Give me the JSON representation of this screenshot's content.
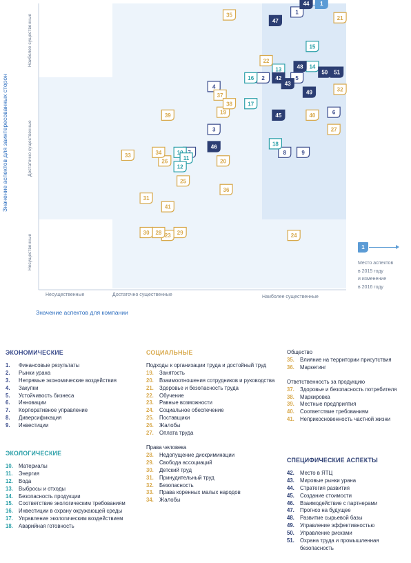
{
  "chart_data": {
    "type": "scatter",
    "xlabel": "Значение аспектов для компании",
    "ylabel": "Значение аспектов для заинтересованных сторон",
    "x_ticks": [
      "Несущественные",
      "Достаточно существенные",
      "Наиболее существенные"
    ],
    "y_ticks": [
      "Несущественные",
      "Достаточно существенные",
      "Наиболее существенные"
    ],
    "xlim": [
      0,
      10
    ],
    "ylim": [
      0,
      10
    ],
    "colors": {
      "economic": "#3b4c8c",
      "environmental": "#2a9fa8",
      "social": "#d8a94c",
      "specific": "#2c3e73",
      "legend": "#5b9bd5",
      "zone_mid": "#edf4fb",
      "zone_top": "#dce9f7"
    },
    "points": [
      {
        "label": "1",
        "group": "economic",
        "x": 8.4,
        "y": 9.7,
        "x_prev": 9.2,
        "y_prev": 10.0
      },
      {
        "label": "2",
        "group": "economic",
        "x": 7.3,
        "y": 7.4
      },
      {
        "label": "3",
        "group": "economic",
        "x": 5.7,
        "y": 5.6
      },
      {
        "label": "4",
        "group": "economic",
        "x": 5.7,
        "y": 7.1
      },
      {
        "label": "5",
        "group": "economic",
        "x": 8.4,
        "y": 7.4
      },
      {
        "label": "6",
        "group": "economic",
        "x": 9.6,
        "y": 6.2
      },
      {
        "label": "7",
        "group": "economic",
        "x": 4.9,
        "y": 4.8
      },
      {
        "label": "8",
        "group": "economic",
        "x": 8.0,
        "y": 4.8
      },
      {
        "label": "9",
        "group": "economic",
        "x": 8.6,
        "y": 4.8
      },
      {
        "label": "10",
        "group": "environmental",
        "x": 4.6,
        "y": 4.8
      },
      {
        "label": "11",
        "group": "environmental",
        "x": 4.8,
        "y": 4.6
      },
      {
        "label": "12",
        "group": "environmental",
        "x": 4.6,
        "y": 4.3
      },
      {
        "label": "13",
        "group": "environmental",
        "x": 7.8,
        "y": 7.7
      },
      {
        "label": "14",
        "group": "environmental",
        "x": 8.9,
        "y": 7.8
      },
      {
        "label": "15",
        "group": "environmental",
        "x": 8.9,
        "y": 8.5
      },
      {
        "label": "16",
        "group": "environmental",
        "x": 6.9,
        "y": 7.4
      },
      {
        "label": "17",
        "group": "environmental",
        "x": 6.9,
        "y": 6.5
      },
      {
        "label": "18",
        "group": "environmental",
        "x": 7.7,
        "y": 5.1
      },
      {
        "label": "19",
        "group": "social",
        "x": 6.0,
        "y": 6.2
      },
      {
        "label": "20",
        "group": "social",
        "x": 6.0,
        "y": 4.5
      },
      {
        "label": "21",
        "group": "social",
        "x": 9.8,
        "y": 9.5
      },
      {
        "label": "22",
        "group": "social",
        "x": 7.4,
        "y": 8.0
      },
      {
        "label": "23",
        "group": "social",
        "x": 4.2,
        "y": 1.9
      },
      {
        "label": "24",
        "group": "social",
        "x": 8.3,
        "y": 1.9
      },
      {
        "label": "25",
        "group": "social",
        "x": 4.7,
        "y": 3.8
      },
      {
        "label": "26",
        "group": "social",
        "x": 4.1,
        "y": 4.5
      },
      {
        "label": "27",
        "group": "social",
        "x": 9.6,
        "y": 5.6
      },
      {
        "label": "28",
        "group": "social",
        "x": 3.9,
        "y": 2.0
      },
      {
        "label": "29",
        "group": "social",
        "x": 4.6,
        "y": 2.0
      },
      {
        "label": "30",
        "group": "social",
        "x": 3.5,
        "y": 2.0
      },
      {
        "label": "31",
        "group": "social",
        "x": 3.5,
        "y": 3.2
      },
      {
        "label": "32",
        "group": "social",
        "x": 9.8,
        "y": 7.0
      },
      {
        "label": "33",
        "group": "social",
        "x": 2.9,
        "y": 4.7
      },
      {
        "label": "34",
        "group": "social",
        "x": 3.9,
        "y": 4.8
      },
      {
        "label": "35",
        "group": "social",
        "x": 6.2,
        "y": 9.6
      },
      {
        "label": "36",
        "group": "social",
        "x": 6.1,
        "y": 3.5
      },
      {
        "label": "37",
        "group": "social",
        "x": 5.9,
        "y": 6.8
      },
      {
        "label": "38",
        "group": "social",
        "x": 6.2,
        "y": 6.5
      },
      {
        "label": "39",
        "group": "social",
        "x": 4.2,
        "y": 6.1
      },
      {
        "label": "40",
        "group": "social",
        "x": 8.9,
        "y": 6.1
      },
      {
        "label": "41",
        "group": "social",
        "x": 4.2,
        "y": 2.9
      },
      {
        "label": "42",
        "group": "specific",
        "x": 7.8,
        "y": 7.4
      },
      {
        "label": "43",
        "group": "specific",
        "x": 8.1,
        "y": 7.2
      },
      {
        "label": "44",
        "group": "specific",
        "x": 8.7,
        "y": 10.0
      },
      {
        "label": "45",
        "group": "specific",
        "x": 7.8,
        "y": 6.1
      },
      {
        "label": "46",
        "group": "specific",
        "x": 5.7,
        "y": 5.0
      },
      {
        "label": "47",
        "group": "specific",
        "x": 7.7,
        "y": 9.4
      },
      {
        "label": "48",
        "group": "specific",
        "x": 8.5,
        "y": 7.8
      },
      {
        "label": "49",
        "group": "specific",
        "x": 8.8,
        "y": 6.9
      },
      {
        "label": "50",
        "group": "specific",
        "x": 9.3,
        "y": 7.6
      },
      {
        "label": "51",
        "group": "specific",
        "x": 9.7,
        "y": 7.6
      }
    ]
  },
  "legend": {
    "marker": "1",
    "text_lines": [
      "Место аспектов",
      "в 2015 году",
      "и изменение",
      "в 2016 году"
    ]
  },
  "groups": {
    "economic": {
      "title": "ЭКОНОМИЧЕСКИЕ",
      "items": [
        {
          "num": "1.",
          "text": "Финансовые результаты"
        },
        {
          "num": "2.",
          "text": "Рынки урана"
        },
        {
          "num": "3.",
          "text": "Непрямые экономические воздействия"
        },
        {
          "num": "4.",
          "text": "Закупки"
        },
        {
          "num": "5.",
          "text": "Устойчивость бизнеса"
        },
        {
          "num": "6.",
          "text": "Инновации"
        },
        {
          "num": "7.",
          "text": "Корпоративное управление"
        },
        {
          "num": "8.",
          "text": "Диверсификация"
        },
        {
          "num": "9.",
          "text": "Инвестиции"
        }
      ]
    },
    "environmental": {
      "title": "ЭКОЛОГИЧЕСКИЕ",
      "items": [
        {
          "num": "10.",
          "text": "Материалы"
        },
        {
          "num": "11.",
          "text": "Энергия"
        },
        {
          "num": "12.",
          "text": "Вода"
        },
        {
          "num": "13.",
          "text": "Выбросы и отходы"
        },
        {
          "num": "14.",
          "text": "Безопасность продукции"
        },
        {
          "num": "15.",
          "text": "Соответствие экологическим требованиям"
        },
        {
          "num": "16.",
          "text": "Инвестиции в охрану окружающей среды"
        },
        {
          "num": "17.",
          "text": "Управление экологическим воздействием"
        },
        {
          "num": "18.",
          "text": "Аварийная готовность"
        }
      ]
    },
    "social": {
      "title": "СОЦИАЛЬНЫЕ",
      "sub_labor": "Подходы к организации труда и достойный труд",
      "labor": [
        {
          "num": "19.",
          "text": "Занятость"
        },
        {
          "num": "20.",
          "text": "Взаимоотношения сотрудников и руководства"
        },
        {
          "num": "21.",
          "text": "Здоровье и безопасность труда"
        },
        {
          "num": "22.",
          "text": "Обучение"
        },
        {
          "num": "23.",
          "text": "Равные возможности"
        },
        {
          "num": "24.",
          "text": "Социальное обеспечение"
        },
        {
          "num": "25.",
          "text": "Поставщики"
        },
        {
          "num": "26.",
          "text": "Жалобы"
        },
        {
          "num": "27.",
          "text": "Оплата труда"
        }
      ],
      "sub_rights": "Права человека",
      "rights": [
        {
          "num": "28.",
          "text": "Недопущение дискриминации"
        },
        {
          "num": "29.",
          "text": "Свобода ассоциаций"
        },
        {
          "num": "30.",
          "text": "Детский труд"
        },
        {
          "num": "31.",
          "text": "Принудительный труд"
        },
        {
          "num": "32.",
          "text": "Безопасность"
        },
        {
          "num": "33.",
          "text": "Права коренных малых народов"
        },
        {
          "num": "34.",
          "text": "Жалобы"
        }
      ],
      "sub_society": "Общество",
      "society": [
        {
          "num": "35.",
          "text": "Влияние на территории присутствия"
        },
        {
          "num": "36.",
          "text": "Маркетинг"
        }
      ],
      "sub_product": "Ответственность за продукцию",
      "product": [
        {
          "num": "37.",
          "text": "Здоровье и безопасность потребителя"
        },
        {
          "num": "38.",
          "text": "Маркировка"
        },
        {
          "num": "39.",
          "text": "Местные предприятия"
        },
        {
          "num": "40.",
          "text": "Соответствие требованиям"
        },
        {
          "num": "41.",
          "text": "Неприкосновенность частной жизни"
        }
      ]
    },
    "specific": {
      "title": "СПЕЦИФИЧЕСКИЕ АСПЕКТЫ",
      "items": [
        {
          "num": "42.",
          "text": "Место в ЯТЦ"
        },
        {
          "num": "43.",
          "text": "Мировые рынки урана"
        },
        {
          "num": "44.",
          "text": "Стратегия развития"
        },
        {
          "num": "45.",
          "text": "Создание стоимости"
        },
        {
          "num": "46.",
          "text": "Взаимодействие с партнерами"
        },
        {
          "num": "47.",
          "text": "Прогноз на будущее"
        },
        {
          "num": "48.",
          "text": "Развитие сырьевой базы"
        },
        {
          "num": "49.",
          "text": "Управление эффективностью"
        },
        {
          "num": "50.",
          "text": "Управление рисками"
        },
        {
          "num": "51.",
          "text": "Охрана труда и промышленная безопасность"
        }
      ]
    }
  }
}
